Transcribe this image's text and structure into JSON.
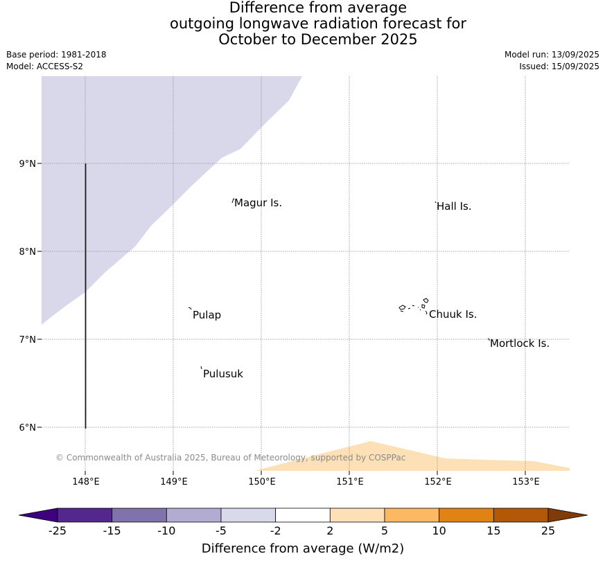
{
  "title": {
    "line1": "Difference from average",
    "line2": "outgoing longwave radiation forecast for",
    "line3": "October to December 2025"
  },
  "meta": {
    "base_period": "Base period: 1981-2018",
    "model": "Model: ACCESS-S2",
    "model_run": "Model run: 13/09/2025",
    "issued": "Issued: 15/09/2025"
  },
  "map": {
    "lon_ticks": [
      "148°E",
      "149°E",
      "150°E",
      "151°E",
      "152°E",
      "153°E"
    ],
    "lat_ticks": [
      "9°N",
      "8°N",
      "7°N",
      "6°N"
    ],
    "places": [
      {
        "name": "Magur Is."
      },
      {
        "name": "Hall Is."
      },
      {
        "name": "Pulap"
      },
      {
        "name": "Chuuk Is."
      },
      {
        "name": "Mortlock Is."
      },
      {
        "name": "Pulusuk"
      }
    ],
    "copyright": "© Commonwealth of Australia 2025, Bureau of Meteorology, supported by COSPPac",
    "colors": {
      "negative_shade": "#d8d8ea",
      "positive_shade": "#fde0b6"
    }
  },
  "legend": {
    "title": "Difference from average (W/m2)",
    "ticks": [
      "-25",
      "-15",
      "-10",
      "-5",
      "-2",
      "2",
      "5",
      "10",
      "15",
      "25"
    ],
    "colors": [
      "#3f007d",
      "#54278f",
      "#8073ac",
      "#b2abd2",
      "#d8daeb",
      "#ffffff",
      "#fee0b6",
      "#fdb863",
      "#e08214",
      "#b35806",
      "#7f3b08"
    ]
  }
}
